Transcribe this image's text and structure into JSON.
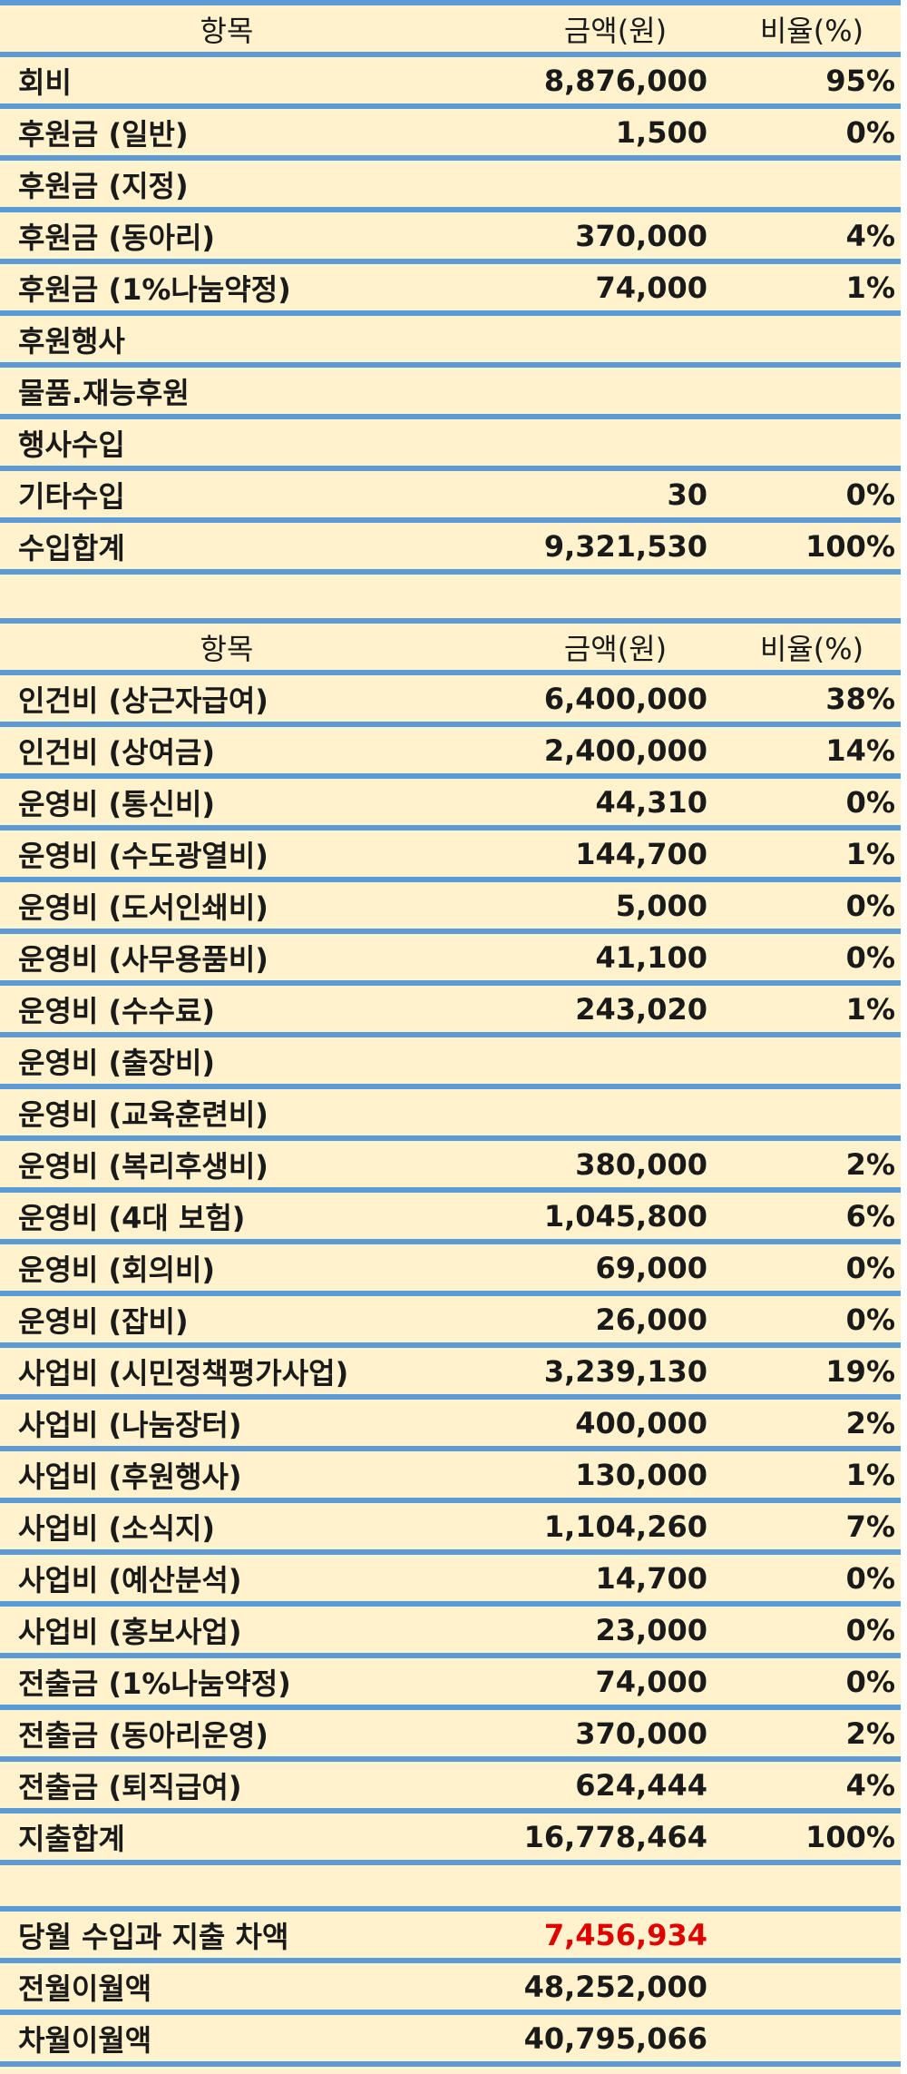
{
  "income": {
    "header": {
      "item": "항목",
      "amount": "금액(원)",
      "ratio": "비율(%)"
    },
    "rows": [
      {
        "item": "회비",
        "amount": "8,876,000",
        "ratio": "95%"
      },
      {
        "item": "후원금 (일반)",
        "amount": "1,500",
        "ratio": "0%"
      },
      {
        "item": "후원금 (지정)",
        "amount": "",
        "ratio": ""
      },
      {
        "item": "후원금 (동아리)",
        "amount": "370,000",
        "ratio": "4%"
      },
      {
        "item": "후원금 (1%나눔약정)",
        "amount": "74,000",
        "ratio": "1%"
      },
      {
        "item": "후원행사",
        "amount": "",
        "ratio": ""
      },
      {
        "item": "물품.재능후원",
        "amount": "",
        "ratio": ""
      },
      {
        "item": "행사수입",
        "amount": "",
        "ratio": ""
      },
      {
        "item": "기타수입",
        "amount": "30",
        "ratio": "0%"
      },
      {
        "item": "수입합계",
        "amount": "9,321,530",
        "ratio": "100%"
      }
    ]
  },
  "expense": {
    "header": {
      "item": "항목",
      "amount": "금액(원)",
      "ratio": "비율(%)"
    },
    "rows": [
      {
        "item": "인건비 (상근자급여)",
        "amount": "6,400,000",
        "ratio": "38%"
      },
      {
        "item": "인건비 (상여금)",
        "amount": "2,400,000",
        "ratio": "14%"
      },
      {
        "item": "운영비 (통신비)",
        "amount": "44,310",
        "ratio": "0%"
      },
      {
        "item": "운영비 (수도광열비)",
        "amount": "144,700",
        "ratio": "1%"
      },
      {
        "item": "운영비 (도서인쇄비)",
        "amount": "5,000",
        "ratio": "0%"
      },
      {
        "item": "운영비 (사무용품비)",
        "amount": "41,100",
        "ratio": "0%"
      },
      {
        "item": "운영비 (수수료)",
        "amount": "243,020",
        "ratio": "1%"
      },
      {
        "item": "운영비 (출장비)",
        "amount": "",
        "ratio": ""
      },
      {
        "item": "운영비 (교육훈련비)",
        "amount": "",
        "ratio": ""
      },
      {
        "item": "운영비 (복리후생비)",
        "amount": "380,000",
        "ratio": "2%"
      },
      {
        "item": "운영비 (4대 보험)",
        "amount": "1,045,800",
        "ratio": "6%"
      },
      {
        "item": "운영비 (회의비)",
        "amount": "69,000",
        "ratio": "0%"
      },
      {
        "item": "운영비 (잡비)",
        "amount": "26,000",
        "ratio": "0%"
      },
      {
        "item": "사업비 (시민정책평가사업)",
        "amount": "3,239,130",
        "ratio": "19%"
      },
      {
        "item": "사업비 (나눔장터)",
        "amount": "400,000",
        "ratio": "2%"
      },
      {
        "item": "사업비 (후원행사)",
        "amount": "130,000",
        "ratio": "1%"
      },
      {
        "item": "사업비 (소식지)",
        "amount": "1,104,260",
        "ratio": "7%"
      },
      {
        "item": "사업비 (예산분석)",
        "amount": "14,700",
        "ratio": "0%"
      },
      {
        "item": "사업비 (홍보사업)",
        "amount": "23,000",
        "ratio": "0%"
      },
      {
        "item": "전출금 (1%나눔약정)",
        "amount": "74,000",
        "ratio": "0%"
      },
      {
        "item": "전출금 (동아리운영)",
        "amount": "370,000",
        "ratio": "2%"
      },
      {
        "item": "전출금 (퇴직급여)",
        "amount": "624,444",
        "ratio": "4%"
      },
      {
        "item": "지출합계",
        "amount": "16,778,464",
        "ratio": "100%"
      }
    ]
  },
  "balance": {
    "highlight_color": "#e00000",
    "rows": [
      {
        "item": "당월 수입과 지출 차액",
        "amount": "7,456,934"
      },
      {
        "item": "전월이월액",
        "amount": "48,252,000"
      },
      {
        "item": "차월이월액",
        "amount": "40,795,066"
      }
    ]
  }
}
